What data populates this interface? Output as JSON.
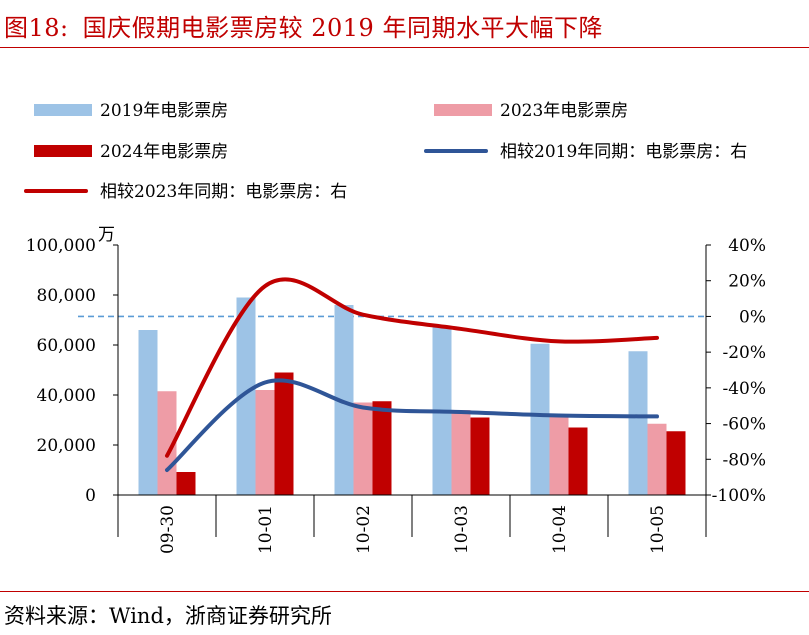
{
  "figure": {
    "title_number": "图18:",
    "title_text": "国庆假期电影票房较 2019 年同期水平大幅下降",
    "source": "资料来源：Wind，浙商证券研究所"
  },
  "colors": {
    "bar_2019": "#9dc3e6",
    "bar_2023": "#ee9ca6",
    "bar_2024": "#c00000",
    "line_vs2019": "#2f5597",
    "line_vs2023": "#c00000",
    "zero_line": "#5b9bd5",
    "title": "#c00000"
  },
  "chart_data": {
    "type": "bar",
    "left_unit": "万",
    "categories": [
      "09-30",
      "10-01",
      "10-02",
      "10-03",
      "10-04",
      "10-05"
    ],
    "ylim_left": [
      0,
      100000
    ],
    "yticks_left": [
      "0",
      "20,000",
      "40,000",
      "60,000",
      "80,000",
      "100,000"
    ],
    "ylim_right": [
      -100,
      40
    ],
    "yticks_right": [
      "-100%",
      "-80%",
      "-60%",
      "-40%",
      "-20%",
      "0%",
      "20%",
      "40%"
    ],
    "legend_position": "top",
    "bar_series": [
      {
        "name": "2019年电影票房",
        "values": [
          66000,
          79000,
          76000,
          67000,
          60500,
          57500
        ]
      },
      {
        "name": "2023年电影票房",
        "values": [
          41500,
          42000,
          37000,
          34000,
          31500,
          28500
        ]
      },
      {
        "name": "2024年电影票房",
        "values": [
          9200,
          49000,
          37500,
          31000,
          27000,
          25500
        ]
      }
    ],
    "line_series": [
      {
        "name": "相较2019年同期：电影票房：右",
        "axis": "right",
        "values": [
          -86,
          -37,
          -51,
          -53.5,
          -55.5,
          -56
        ]
      },
      {
        "name": "相较2023年同期：电影票房：右",
        "axis": "right",
        "values": [
          -78,
          17,
          1,
          -7,
          -14,
          -12
        ]
      }
    ],
    "reference_line": {
      "axis": "right",
      "value": 0
    }
  }
}
